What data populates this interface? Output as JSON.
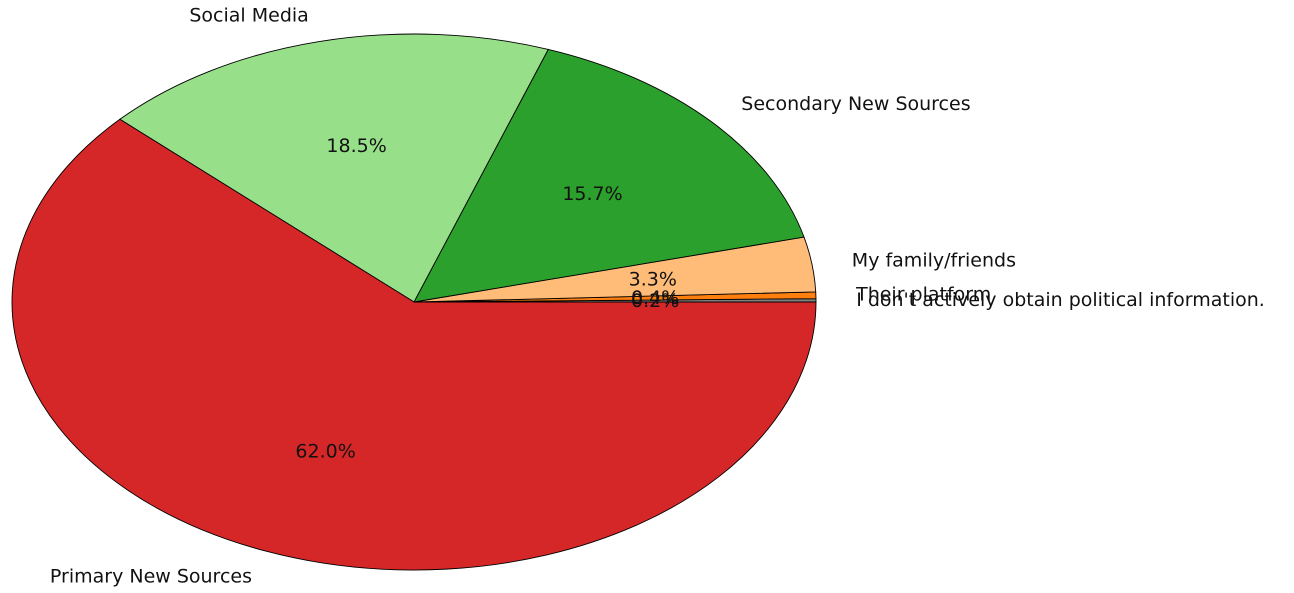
{
  "chart_data": {
    "type": "pie",
    "title": "",
    "start_angle_deg": 0,
    "direction": "counterclockwise",
    "slices": [
      {
        "label": "I don't actively obtain political information.",
        "value": 0.2,
        "pct_label": "0.2%",
        "color": "#7f7f7f"
      },
      {
        "label": "Their platform",
        "value": 0.4,
        "pct_label": "0.4%",
        "color": "#ff7f0e"
      },
      {
        "label": "My family/friends",
        "value": 3.3,
        "pct_label": "3.3%",
        "color": "#ffbb78"
      },
      {
        "label": "Secondary New Sources",
        "value": 15.7,
        "pct_label": "15.7%",
        "color": "#2ca02c"
      },
      {
        "label": "Social Media",
        "value": 18.5,
        "pct_label": "18.5%",
        "color": "#98df8a"
      },
      {
        "label": "Primary New Sources",
        "value": 62.0,
        "pct_label": "62.0%",
        "color": "#d62728"
      }
    ]
  }
}
